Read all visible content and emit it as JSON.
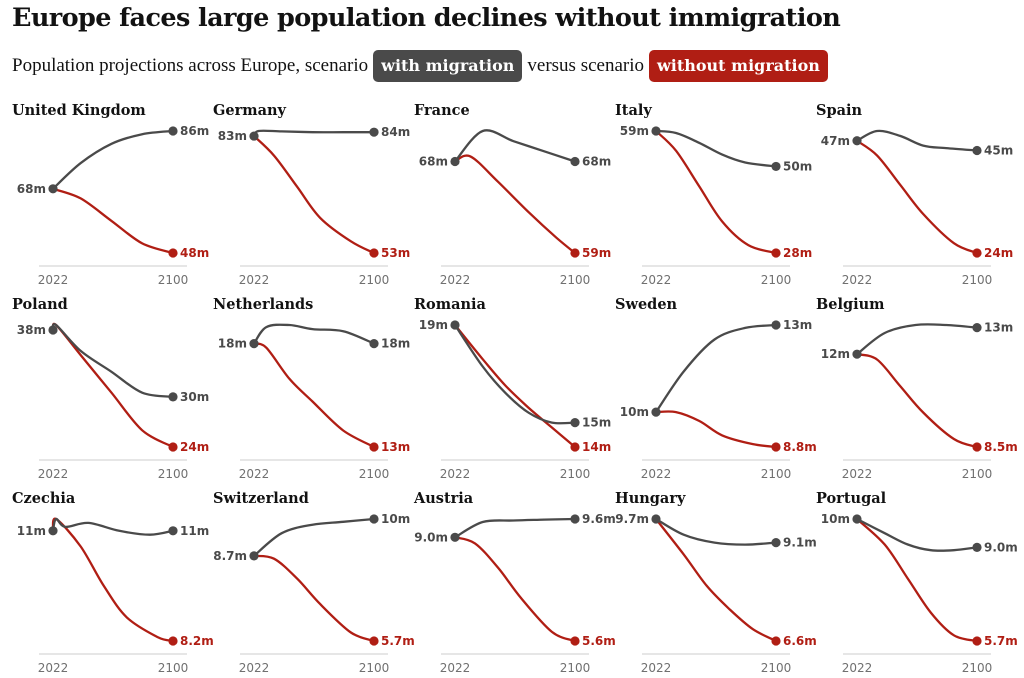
{
  "title": "Europe faces large population declines without immigration",
  "subtitle": {
    "prefix": "Population projections across Europe, scenario",
    "with_label": "with migration",
    "middle": "versus scenario",
    "without_label": "without migration"
  },
  "colors": {
    "with": "#4a4a4a",
    "without": "#b01e14",
    "axis": "#cccccc",
    "tick": "#707070"
  },
  "chart_data": {
    "type": "line",
    "x_ticks": [
      "2022",
      "2100"
    ],
    "x_domain": [
      2022,
      2100
    ],
    "series_names": [
      "with migration",
      "without migration"
    ],
    "panels": [
      {
        "country": "United Kingdom",
        "start": 68,
        "start_label": "68m",
        "with": [
          [
            2022,
            68
          ],
          [
            2040,
            76
          ],
          [
            2060,
            82
          ],
          [
            2080,
            85
          ],
          [
            2100,
            86
          ]
        ],
        "with_label": "86m",
        "without": [
          [
            2022,
            68
          ],
          [
            2040,
            65
          ],
          [
            2060,
            58
          ],
          [
            2080,
            51
          ],
          [
            2100,
            48
          ]
        ],
        "without_label": "48m"
      },
      {
        "country": "Germany",
        "start": 83,
        "start_label": "83m",
        "with": [
          [
            2022,
            83
          ],
          [
            2025,
            84.3
          ],
          [
            2040,
            84.2
          ],
          [
            2060,
            84
          ],
          [
            2080,
            84
          ],
          [
            2100,
            84
          ]
        ],
        "with_label": "84m",
        "without": [
          [
            2022,
            83
          ],
          [
            2035,
            78
          ],
          [
            2050,
            70
          ],
          [
            2065,
            62
          ],
          [
            2085,
            56
          ],
          [
            2100,
            53
          ]
        ],
        "without_label": "53m"
      },
      {
        "country": "France",
        "start": 68,
        "start_label": "68m",
        "with": [
          [
            2022,
            68
          ],
          [
            2040,
            71
          ],
          [
            2060,
            70
          ],
          [
            2080,
            69
          ],
          [
            2100,
            68
          ]
        ],
        "with_label": "68m",
        "without": [
          [
            2022,
            68
          ],
          [
            2032,
            68.5
          ],
          [
            2050,
            66
          ],
          [
            2070,
            63
          ],
          [
            2088,
            60.5
          ],
          [
            2100,
            59
          ]
        ],
        "without_label": "59m"
      },
      {
        "country": "Italy",
        "start": 59,
        "start_label": "59m",
        "with": [
          [
            2022,
            59
          ],
          [
            2035,
            58.5
          ],
          [
            2050,
            56
          ],
          [
            2065,
            53
          ],
          [
            2080,
            51
          ],
          [
            2100,
            50
          ]
        ],
        "with_label": "50m",
        "without": [
          [
            2022,
            59
          ],
          [
            2035,
            54
          ],
          [
            2050,
            45
          ],
          [
            2065,
            36
          ],
          [
            2082,
            30
          ],
          [
            2100,
            28
          ]
        ],
        "without_label": "28m"
      },
      {
        "country": "Spain",
        "start": 47,
        "start_label": "47m",
        "with": [
          [
            2022,
            47
          ],
          [
            2035,
            49
          ],
          [
            2050,
            48
          ],
          [
            2065,
            46
          ],
          [
            2080,
            45.5
          ],
          [
            2100,
            45
          ]
        ],
        "with_label": "45m",
        "without": [
          [
            2022,
            47
          ],
          [
            2035,
            44
          ],
          [
            2050,
            38
          ],
          [
            2065,
            32
          ],
          [
            2085,
            26
          ],
          [
            2100,
            24
          ]
        ],
        "without_label": "24m"
      },
      {
        "country": "Poland",
        "start": 38,
        "start_label": "38m",
        "with": [
          [
            2022,
            38
          ],
          [
            2024,
            38.6
          ],
          [
            2040,
            35.5
          ],
          [
            2060,
            33
          ],
          [
            2080,
            30.5
          ],
          [
            2100,
            30
          ]
        ],
        "with_label": "30m",
        "without": [
          [
            2022,
            38
          ],
          [
            2024,
            38.6
          ],
          [
            2040,
            35
          ],
          [
            2060,
            30.5
          ],
          [
            2080,
            26
          ],
          [
            2100,
            24
          ]
        ],
        "without_label": "24m"
      },
      {
        "country": "Netherlands",
        "start": 18,
        "start_label": "18m",
        "with": [
          [
            2022,
            18
          ],
          [
            2030,
            18.8
          ],
          [
            2045,
            18.9
          ],
          [
            2060,
            18.7
          ],
          [
            2080,
            18.6
          ],
          [
            2100,
            18
          ]
        ],
        "with_label": "18m",
        "without": [
          [
            2022,
            18
          ],
          [
            2030,
            17.8
          ],
          [
            2045,
            16.3
          ],
          [
            2060,
            15.2
          ],
          [
            2080,
            13.8
          ],
          [
            2100,
            13
          ]
        ],
        "without_label": "13m"
      },
      {
        "country": "Romania",
        "start": 19,
        "start_label": "19m",
        "with": [
          [
            2022,
            19
          ],
          [
            2040,
            17.3
          ],
          [
            2055,
            16.2
          ],
          [
            2070,
            15.4
          ],
          [
            2085,
            15
          ],
          [
            2100,
            15
          ]
        ],
        "with_label": "15m",
        "without": [
          [
            2022,
            19
          ],
          [
            2040,
            17.6
          ],
          [
            2055,
            16.5
          ],
          [
            2070,
            15.6
          ],
          [
            2085,
            14.8
          ],
          [
            2100,
            14
          ]
        ],
        "without_label": "14m"
      },
      {
        "country": "Sweden",
        "start": 10,
        "start_label": "10m",
        "with": [
          [
            2022,
            10
          ],
          [
            2040,
            11.4
          ],
          [
            2060,
            12.5
          ],
          [
            2080,
            12.9
          ],
          [
            2100,
            13
          ]
        ],
        "with_label": "13m",
        "without": [
          [
            2022,
            10
          ],
          [
            2035,
            10
          ],
          [
            2050,
            9.7
          ],
          [
            2065,
            9.2
          ],
          [
            2085,
            8.9
          ],
          [
            2100,
            8.8
          ]
        ],
        "without_label": "8.8m"
      },
      {
        "country": "Belgium",
        "start": 12,
        "start_label": "12m",
        "with": [
          [
            2022,
            12
          ],
          [
            2040,
            12.8
          ],
          [
            2060,
            13.1
          ],
          [
            2080,
            13.1
          ],
          [
            2100,
            13
          ]
        ],
        "with_label": "13m",
        "without": [
          [
            2022,
            12
          ],
          [
            2035,
            11.8
          ],
          [
            2050,
            10.8
          ],
          [
            2065,
            9.8
          ],
          [
            2085,
            8.8
          ],
          [
            2100,
            8.5
          ]
        ],
        "without_label": "8.5m"
      },
      {
        "country": "Czechia",
        "start": 11,
        "start_label": "11m",
        "with": [
          [
            2022,
            11
          ],
          [
            2024,
            11.3
          ],
          [
            2030,
            11.1
          ],
          [
            2045,
            11.2
          ],
          [
            2065,
            11
          ],
          [
            2085,
            10.9
          ],
          [
            2100,
            11
          ]
        ],
        "with_label": "11m",
        "without": [
          [
            2022,
            11
          ],
          [
            2024,
            11.3
          ],
          [
            2040,
            10.6
          ],
          [
            2055,
            9.6
          ],
          [
            2070,
            8.8
          ],
          [
            2090,
            8.3
          ],
          [
            2100,
            8.2
          ]
        ],
        "without_label": "8.2m"
      },
      {
        "country": "Switzerland",
        "start": 8.7,
        "start_label": "8.7m",
        "with": [
          [
            2022,
            8.7
          ],
          [
            2040,
            9.5
          ],
          [
            2060,
            9.8
          ],
          [
            2080,
            9.9
          ],
          [
            2100,
            10
          ]
        ],
        "with_label": "10m",
        "without": [
          [
            2022,
            8.7
          ],
          [
            2035,
            8.6
          ],
          [
            2050,
            7.9
          ],
          [
            2065,
            7
          ],
          [
            2085,
            6
          ],
          [
            2100,
            5.7
          ]
        ],
        "without_label": "5.7m"
      },
      {
        "country": "Austria",
        "start": 9.0,
        "start_label": "9.0m",
        "with": [
          [
            2022,
            9
          ],
          [
            2040,
            9.5
          ],
          [
            2060,
            9.55
          ],
          [
            2080,
            9.58
          ],
          [
            2100,
            9.6
          ]
        ],
        "with_label": "9.6m",
        "without": [
          [
            2022,
            9
          ],
          [
            2035,
            8.8
          ],
          [
            2050,
            8
          ],
          [
            2065,
            7
          ],
          [
            2085,
            5.9
          ],
          [
            2100,
            5.6
          ]
        ],
        "without_label": "5.6m"
      },
      {
        "country": "Hungary",
        "start": 9.7,
        "start_label": "9.7m",
        "with": [
          [
            2022,
            9.7
          ],
          [
            2040,
            9.3
          ],
          [
            2060,
            9.1
          ],
          [
            2080,
            9.05
          ],
          [
            2100,
            9.1
          ]
        ],
        "with_label": "9.1m",
        "without": [
          [
            2022,
            9.7
          ],
          [
            2040,
            8.8
          ],
          [
            2055,
            8
          ],
          [
            2070,
            7.4
          ],
          [
            2085,
            6.9
          ],
          [
            2100,
            6.6
          ]
        ],
        "without_label": "6.6m"
      },
      {
        "country": "Portugal",
        "start": 10,
        "start_label": "10m",
        "with": [
          [
            2022,
            10
          ],
          [
            2040,
            9.5
          ],
          [
            2055,
            9.1
          ],
          [
            2070,
            8.9
          ],
          [
            2085,
            8.9
          ],
          [
            2100,
            9
          ]
        ],
        "with_label": "9.0m",
        "without": [
          [
            2022,
            10
          ],
          [
            2040,
            9.1
          ],
          [
            2055,
            7.9
          ],
          [
            2070,
            6.7
          ],
          [
            2085,
            5.9
          ],
          [
            2100,
            5.7
          ]
        ],
        "without_label": "5.7m"
      }
    ]
  }
}
